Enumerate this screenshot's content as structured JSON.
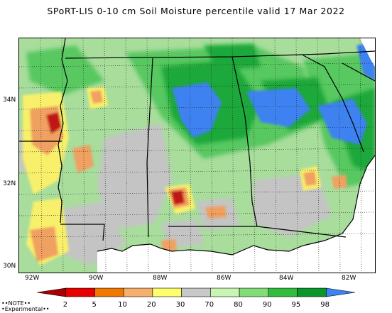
{
  "title": "SPoRT-LIS 0-10 cm Soil Moisture percentile valid 17 Mar 2022",
  "lat_labels": [
    "34N",
    "32N",
    "30N"
  ],
  "lon_labels": [
    "92W",
    "90W",
    "88W",
    "86W",
    "84W",
    "82W"
  ],
  "colorbar": {
    "tick_labels": [
      "2",
      "5",
      "10",
      "20",
      "30",
      "70",
      "80",
      "90",
      "95",
      "98"
    ],
    "colors": [
      "#aa0000",
      "#e60000",
      "#f07800",
      "#f5b06e",
      "#ffff6e",
      "#c8c8c8",
      "#c8f5b4",
      "#82dc78",
      "#32be3c",
      "#0a9628",
      "#3c82f0"
    ]
  },
  "notes": [
    "••NOTE••",
    "•Experimental••"
  ],
  "palette": {
    "ocean": "#ffffff",
    "light_green": "#a8dd9c",
    "green": "#58c860",
    "dark_green": "#1ea83a",
    "blue": "#3c82f0",
    "gray": "#c4c4c4",
    "yellow": "#f8f06a",
    "orange": "#f0a060",
    "red": "#c01818"
  }
}
